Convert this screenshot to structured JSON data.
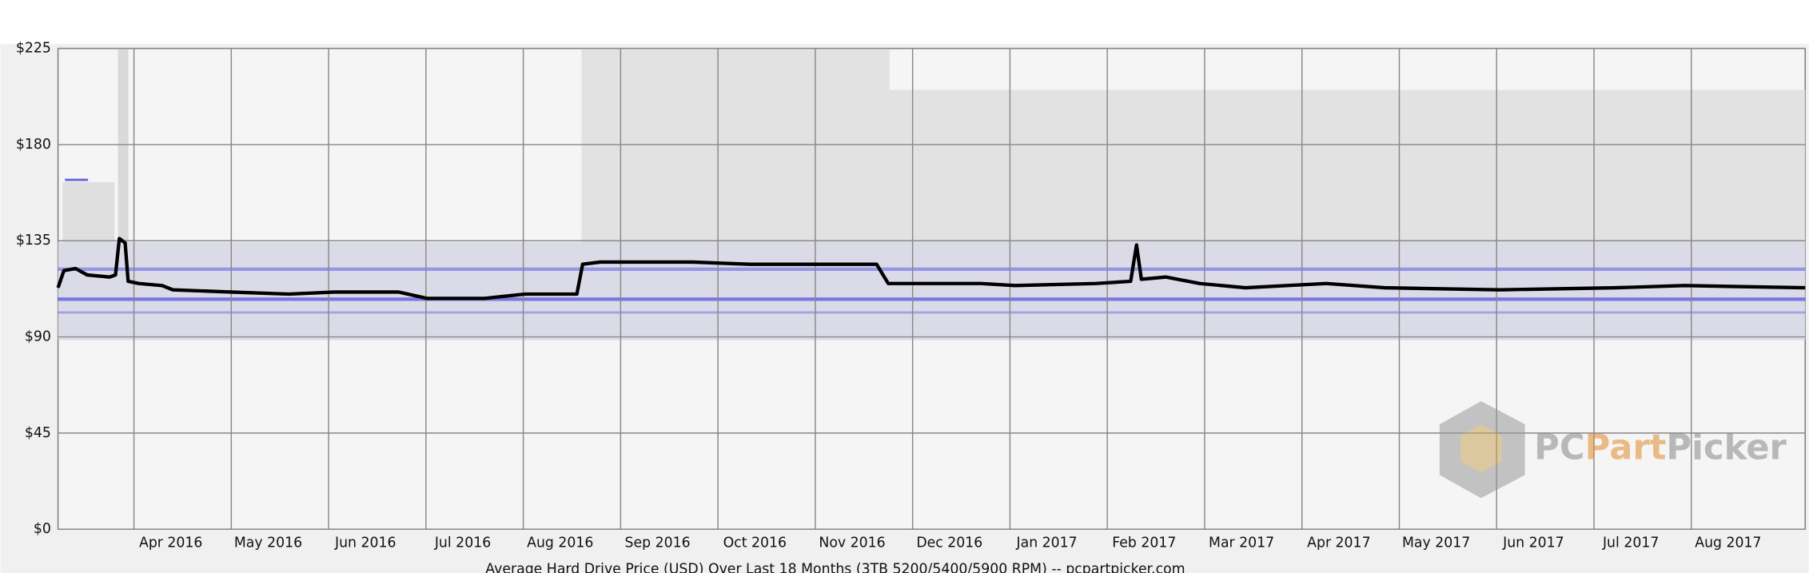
{
  "chart_data": {
    "type": "line",
    "title": "Average Hard Drive Price (USD) Over Last 18 Months (3TB 5200/5400/5900 RPM) -- pcpartpicker.com",
    "watermark": [
      "PC",
      "Part",
      "Picker"
    ],
    "x": [
      0.22,
      0.28,
      0.4,
      0.52,
      0.75,
      0.81,
      0.85,
      0.91,
      0.94,
      1.05,
      1.29,
      1.4,
      2.0,
      2.59,
      3.06,
      3.72,
      4.01,
      4.6,
      5.02,
      5.55,
      5.61,
      5.79,
      6.74,
      7.33,
      7.92,
      8.63,
      8.75,
      9.7,
      10.05,
      10.88,
      11.24,
      11.3,
      11.35,
      11.6,
      11.95,
      12.42,
      13.25,
      13.85,
      15.03,
      16.22,
      16.93,
      18.17
    ],
    "values": [
      113,
      121,
      122,
      119,
      118,
      119,
      136,
      134,
      116,
      115,
      114,
      112,
      111,
      110,
      111,
      111,
      108,
      108,
      110,
      110,
      124,
      125,
      125,
      124,
      124,
      124,
      115,
      115,
      114,
      115,
      116,
      133,
      117,
      118,
      115,
      113,
      115,
      113,
      112,
      113,
      114,
      113
    ],
    "color": "#000000",
    "xlim": [
      0.22,
      18.17
    ],
    "xticks": [
      {
        "value": 1,
        "label": "Apr 2016"
      },
      {
        "value": 2,
        "label": "May 2016"
      },
      {
        "value": 3,
        "label": "Jun 2016"
      },
      {
        "value": 4,
        "label": "Jul 2016"
      },
      {
        "value": 5,
        "label": "Aug 2016"
      },
      {
        "value": 6,
        "label": "Sep 2016"
      },
      {
        "value": 7,
        "label": "Oct 2016"
      },
      {
        "value": 8,
        "label": "Nov 2016"
      },
      {
        "value": 9,
        "label": "Dec 2016"
      },
      {
        "value": 10,
        "label": "Jan 2017"
      },
      {
        "value": 11,
        "label": "Feb 2017"
      },
      {
        "value": 12,
        "label": "Mar 2017"
      },
      {
        "value": 13,
        "label": "Apr 2017"
      },
      {
        "value": 14,
        "label": "May 2017"
      },
      {
        "value": 15,
        "label": "Jun 2017"
      },
      {
        "value": 16,
        "label": "Jul 2017"
      },
      {
        "value": 17,
        "label": "Aug 2017"
      }
    ],
    "ylim": [
      0,
      225
    ],
    "yticks": [
      {
        "value": 0,
        "label": "$0"
      },
      {
        "value": 45,
        "label": "$45"
      },
      {
        "value": 90,
        "label": "$90"
      },
      {
        "value": 135,
        "label": "$135"
      },
      {
        "value": 180,
        "label": "$180"
      },
      {
        "value": 225,
        "label": "$225"
      }
    ],
    "grid": true
  }
}
